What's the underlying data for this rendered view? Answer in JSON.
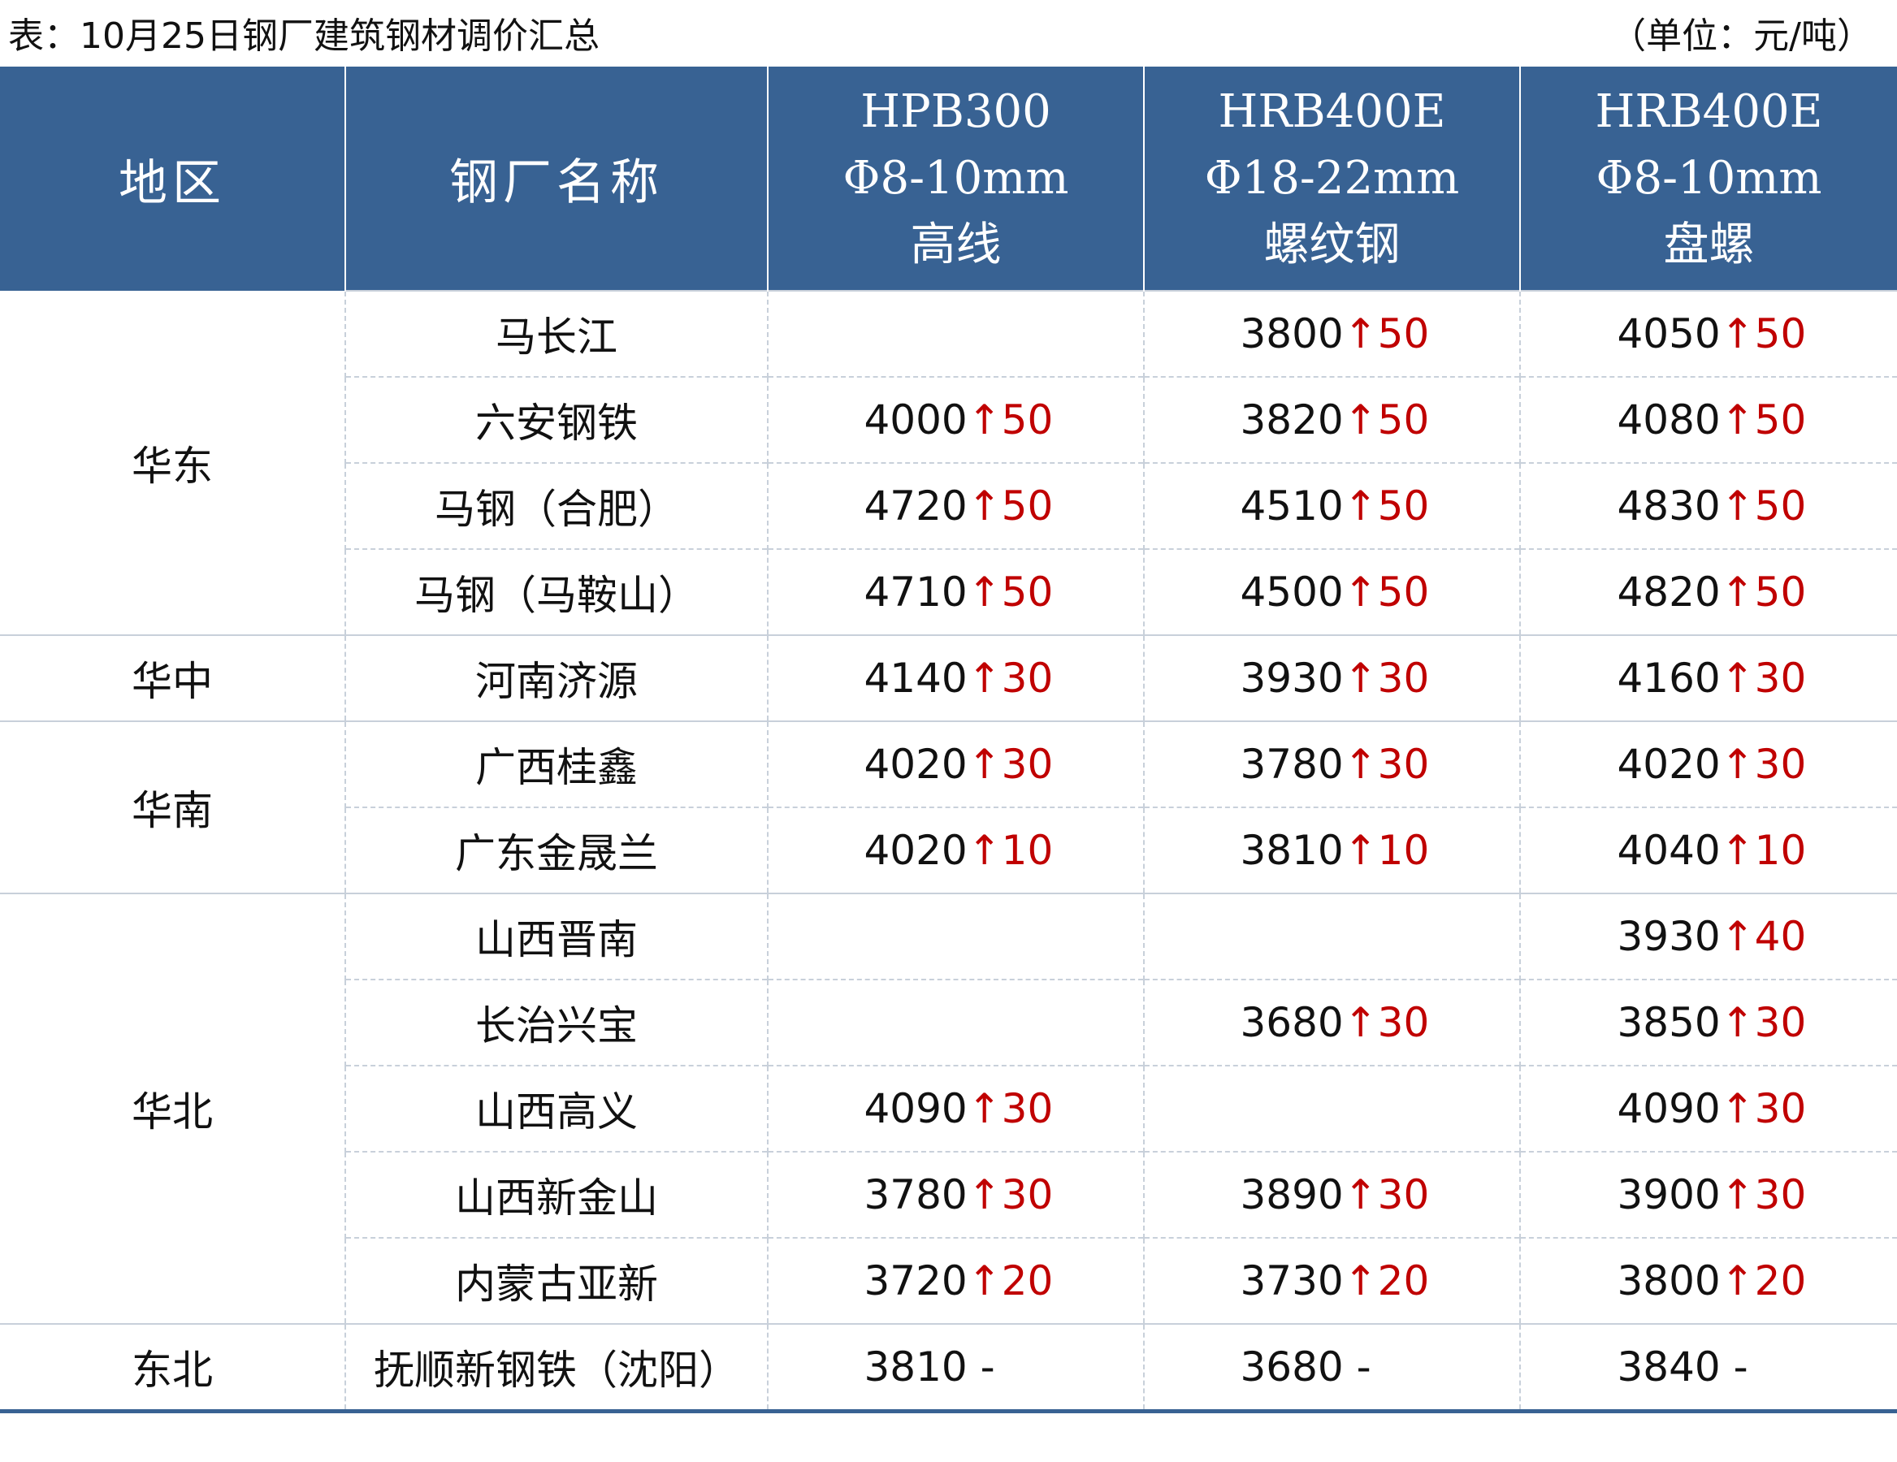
{
  "caption": "表：10月25日钢厂建筑钢材调价汇总",
  "unit": "（单位：元/吨）",
  "header": {
    "region": "地区",
    "mill": "钢厂名称",
    "col1": [
      "HPB300",
      "Φ8-10mm",
      "高线"
    ],
    "col2": [
      "HRB400E",
      "Φ18-22mm",
      "螺纹钢"
    ],
    "col3": [
      "HRB400E",
      "Φ8-10mm",
      "盘螺"
    ]
  },
  "regions": [
    {
      "name": "华东",
      "rows": [
        {
          "mill": "马长江",
          "p": [
            [
              "",
              "",
              ""
            ],
            [
              "3800",
              "↑",
              "50"
            ],
            [
              "4050",
              "↑",
              "50"
            ]
          ]
        },
        {
          "mill": "六安钢铁",
          "p": [
            [
              "4000",
              "↑",
              "50"
            ],
            [
              "3820",
              "↑",
              "50"
            ],
            [
              "4080",
              "↑",
              "50"
            ]
          ]
        },
        {
          "mill": "马钢（合肥）",
          "p": [
            [
              "4720",
              "↑",
              "50"
            ],
            [
              "4510",
              "↑",
              "50"
            ],
            [
              "4830",
              "↑",
              "50"
            ]
          ]
        },
        {
          "mill": "马钢（马鞍山）",
          "p": [
            [
              "4710",
              "↑",
              "50"
            ],
            [
              "4500",
              "↑",
              "50"
            ],
            [
              "4820",
              "↑",
              "50"
            ]
          ]
        }
      ]
    },
    {
      "name": "华中",
      "rows": [
        {
          "mill": "河南济源",
          "p": [
            [
              "4140",
              "↑",
              "30"
            ],
            [
              "3930",
              "↑",
              "30"
            ],
            [
              "4160",
              "↑",
              "30"
            ]
          ]
        }
      ]
    },
    {
      "name": "华南",
      "rows": [
        {
          "mill": "广西桂鑫",
          "p": [
            [
              "4020",
              "↑",
              "30"
            ],
            [
              "3780",
              "↑",
              "30"
            ],
            [
              "4020",
              "↑",
              "30"
            ]
          ]
        },
        {
          "mill": "广东金晟兰",
          "p": [
            [
              "4020",
              "↑",
              "10"
            ],
            [
              "3810",
              "↑",
              "10"
            ],
            [
              "4040",
              "↑",
              "10"
            ]
          ]
        }
      ]
    },
    {
      "name": "华北",
      "rows": [
        {
          "mill": "山西晋南",
          "p": [
            [
              "",
              "",
              ""
            ],
            [
              "",
              "",
              ""
            ],
            [
              "3930",
              "↑",
              "40"
            ]
          ]
        },
        {
          "mill": "长治兴宝",
          "p": [
            [
              "",
              "",
              ""
            ],
            [
              "3680",
              "↑",
              "30"
            ],
            [
              "3850",
              "↑",
              "30"
            ]
          ]
        },
        {
          "mill": "山西高义",
          "p": [
            [
              "4090",
              "↑",
              "30"
            ],
            [
              "",
              "",
              ""
            ],
            [
              "4090",
              "↑",
              "30"
            ]
          ]
        },
        {
          "mill": "山西新金山",
          "p": [
            [
              "3780",
              "↑",
              "30"
            ],
            [
              "3890",
              "↑",
              "30"
            ],
            [
              "3900",
              "↑",
              "30"
            ]
          ]
        },
        {
          "mill": "内蒙古亚新",
          "p": [
            [
              "3720",
              "↑",
              "20"
            ],
            [
              "3730",
              "↑",
              "20"
            ],
            [
              "3800",
              "↑",
              "20"
            ]
          ]
        }
      ]
    },
    {
      "name": "东北",
      "rows": [
        {
          "mill": "抚顺新钢铁（沈阳）",
          "p": [
            [
              "3810",
              " -",
              ""
            ],
            [
              "3680",
              " -",
              ""
            ],
            [
              "3840",
              " -",
              ""
            ]
          ]
        }
      ]
    }
  ]
}
